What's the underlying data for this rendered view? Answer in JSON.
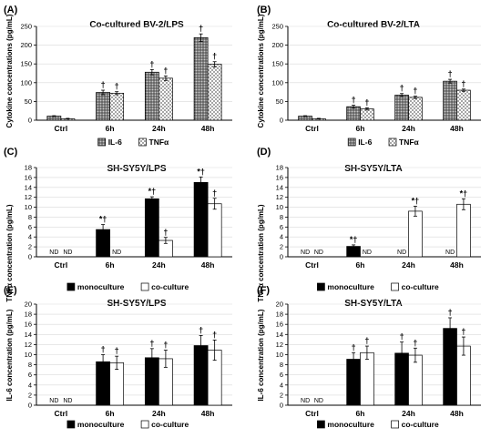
{
  "chart_data": [
    {
      "type": "bar",
      "panel": "(A)",
      "title": "Co-cultured BV-2/LPS",
      "ylabel": "Cytokine concentrations (pg/mL)",
      "xlabel": "",
      "ylim": [
        0,
        250
      ],
      "yticks": [
        "0",
        "50",
        "100",
        "150",
        "200",
        "250"
      ],
      "categories": [
        "Ctrl",
        "6h",
        "24h",
        "48h"
      ],
      "series": [
        {
          "name": "IL-6",
          "pattern": "dots",
          "values": [
            11,
            74,
            128,
            220
          ],
          "errors": [
            1,
            6,
            7,
            10
          ],
          "marks": [
            "",
            "†",
            "†",
            "†"
          ],
          "nd": [
            false,
            false,
            false,
            false
          ]
        },
        {
          "name": "TNFα",
          "pattern": "checks",
          "values": [
            4,
            72,
            112,
            149
          ],
          "errors": [
            1,
            4,
            6,
            7
          ],
          "marks": [
            "",
            "†",
            "†",
            "†"
          ],
          "nd": [
            false,
            false,
            false,
            false
          ]
        }
      ],
      "legend": "bottom"
    },
    {
      "type": "bar",
      "panel": "(B)",
      "title": "Co-cultured BV-2/LTA",
      "ylabel": "Cytokine concentrations (pg/mL)",
      "xlabel": "",
      "ylim": [
        0,
        250
      ],
      "yticks": [
        "0",
        "50",
        "100",
        "150",
        "200",
        "250"
      ],
      "categories": [
        "Ctrl",
        "6h",
        "24h",
        "48h"
      ],
      "series": [
        {
          "name": "IL-6",
          "pattern": "dots",
          "values": [
            11,
            36,
            67,
            104
          ],
          "errors": [
            1,
            4,
            4,
            5
          ],
          "marks": [
            "",
            "†",
            "†",
            "†"
          ],
          "nd": [
            false,
            false,
            false,
            false
          ]
        },
        {
          "name": "TNFα",
          "pattern": "checks",
          "values": [
            4,
            30,
            61,
            80
          ],
          "errors": [
            1,
            3,
            3,
            3
          ],
          "marks": [
            "",
            "†",
            "†",
            "†"
          ],
          "nd": [
            false,
            false,
            false,
            false
          ]
        }
      ],
      "legend": "bottom"
    },
    {
      "type": "bar",
      "panel": "(C)",
      "title": "SH-SY5Y/LPS",
      "ylabel": "TNFα concentration (pg/mL)",
      "xlabel": "",
      "ylim": [
        0,
        18
      ],
      "yticks": [
        "0",
        "2",
        "4",
        "6",
        "8",
        "10",
        "12",
        "14",
        "16",
        "18"
      ],
      "categories": [
        "Ctrl",
        "6h",
        "24h",
        "48h"
      ],
      "series": [
        {
          "name": "monoculture",
          "pattern": "black",
          "values": [
            0,
            5.5,
            11.7,
            15
          ],
          "errors": [
            0,
            1,
            0.4,
            1.1
          ],
          "marks": [
            "",
            "*†",
            "*†",
            "*†"
          ],
          "nd": [
            true,
            false,
            false,
            false
          ]
        },
        {
          "name": "co-culture",
          "pattern": "white",
          "values": [
            0,
            0,
            3.3,
            10.7
          ],
          "errors": [
            0,
            0,
            0.6,
            1.1
          ],
          "marks": [
            "",
            "",
            "†",
            "†"
          ],
          "nd": [
            true,
            true,
            false,
            false
          ]
        }
      ],
      "legend": "bottom"
    },
    {
      "type": "bar",
      "panel": "(D)",
      "title": "SH-SY5Y/LTA",
      "ylabel": "TNFα concentration (pg/mL)",
      "xlabel": "",
      "ylim": [
        0,
        18
      ],
      "yticks": [
        "0",
        "2",
        "4",
        "6",
        "8",
        "10",
        "12",
        "14",
        "16",
        "18"
      ],
      "categories": [
        "Ctrl",
        "6h",
        "24h",
        "48h"
      ],
      "series": [
        {
          "name": "monoculture",
          "pattern": "black",
          "values": [
            0,
            2.1,
            0,
            0
          ],
          "errors": [
            0,
            0.3,
            0,
            0
          ],
          "marks": [
            "",
            "*†",
            "",
            ""
          ],
          "nd": [
            true,
            false,
            true,
            true
          ]
        },
        {
          "name": "co-culture",
          "pattern": "white",
          "values": [
            0,
            0,
            9.2,
            10.6
          ],
          "errors": [
            0,
            0,
            1,
            1.1
          ],
          "marks": [
            "",
            "",
            "*†",
            "*†"
          ],
          "nd": [
            true,
            true,
            false,
            false
          ]
        }
      ],
      "legend": "bottom"
    },
    {
      "type": "bar",
      "panel": "(E)",
      "title": "SH-SY5Y/LPS",
      "ylabel": "IL-6 concentration (pg/mL)",
      "xlabel": "",
      "ylim": [
        0,
        20
      ],
      "yticks": [
        "0",
        "2",
        "4",
        "6",
        "8",
        "10",
        "12",
        "14",
        "16",
        "18",
        "20"
      ],
      "categories": [
        "Ctrl",
        "6h",
        "24h",
        "48h"
      ],
      "series": [
        {
          "name": "monoculture",
          "pattern": "black",
          "values": [
            0,
            8.6,
            9.4,
            11.8
          ],
          "errors": [
            0,
            1.4,
            1.8,
            2
          ],
          "marks": [
            "",
            "†",
            "†",
            "†"
          ],
          "nd": [
            true,
            false,
            false,
            false
          ]
        },
        {
          "name": "co-culture",
          "pattern": "white",
          "values": [
            0,
            8.4,
            9.2,
            10.9
          ],
          "errors": [
            0,
            1.3,
            1.7,
            2
          ],
          "marks": [
            "",
            "†",
            "†",
            "†"
          ],
          "nd": [
            true,
            false,
            false,
            false
          ]
        }
      ],
      "legend": "bottom"
    },
    {
      "type": "bar",
      "panel": "(F)",
      "title": "SH-SY5Y/LTA",
      "ylabel": "IL-6 concentration (pg/mL)",
      "xlabel": "",
      "ylim": [
        0,
        20
      ],
      "yticks": [
        "0",
        "2",
        "4",
        "6",
        "8",
        "10",
        "12",
        "14",
        "16",
        "18",
        "20"
      ],
      "categories": [
        "Ctrl",
        "6h",
        "24h",
        "48h"
      ],
      "series": [
        {
          "name": "monoculture",
          "pattern": "black",
          "values": [
            0,
            9.1,
            10.3,
            15.2
          ],
          "errors": [
            0,
            1.3,
            2.2,
            2.1
          ],
          "marks": [
            "",
            "†",
            "†",
            "†"
          ],
          "nd": [
            true,
            false,
            false,
            false
          ]
        },
        {
          "name": "co-culture",
          "pattern": "white",
          "values": [
            0,
            10.4,
            9.9,
            11.7
          ],
          "errors": [
            0,
            1.3,
            1.4,
            1.8
          ],
          "marks": [
            "",
            "†",
            "†",
            "†"
          ],
          "nd": [
            true,
            false,
            false,
            false
          ]
        }
      ],
      "legend": "bottom"
    }
  ],
  "nd_label": "ND",
  "colors": {
    "axis": "#000000",
    "grid": "#d9d9d9",
    "bar_fill_dark": "#000000",
    "bar_fill_light": "#ffffff",
    "pattern_ink": "#555555"
  }
}
